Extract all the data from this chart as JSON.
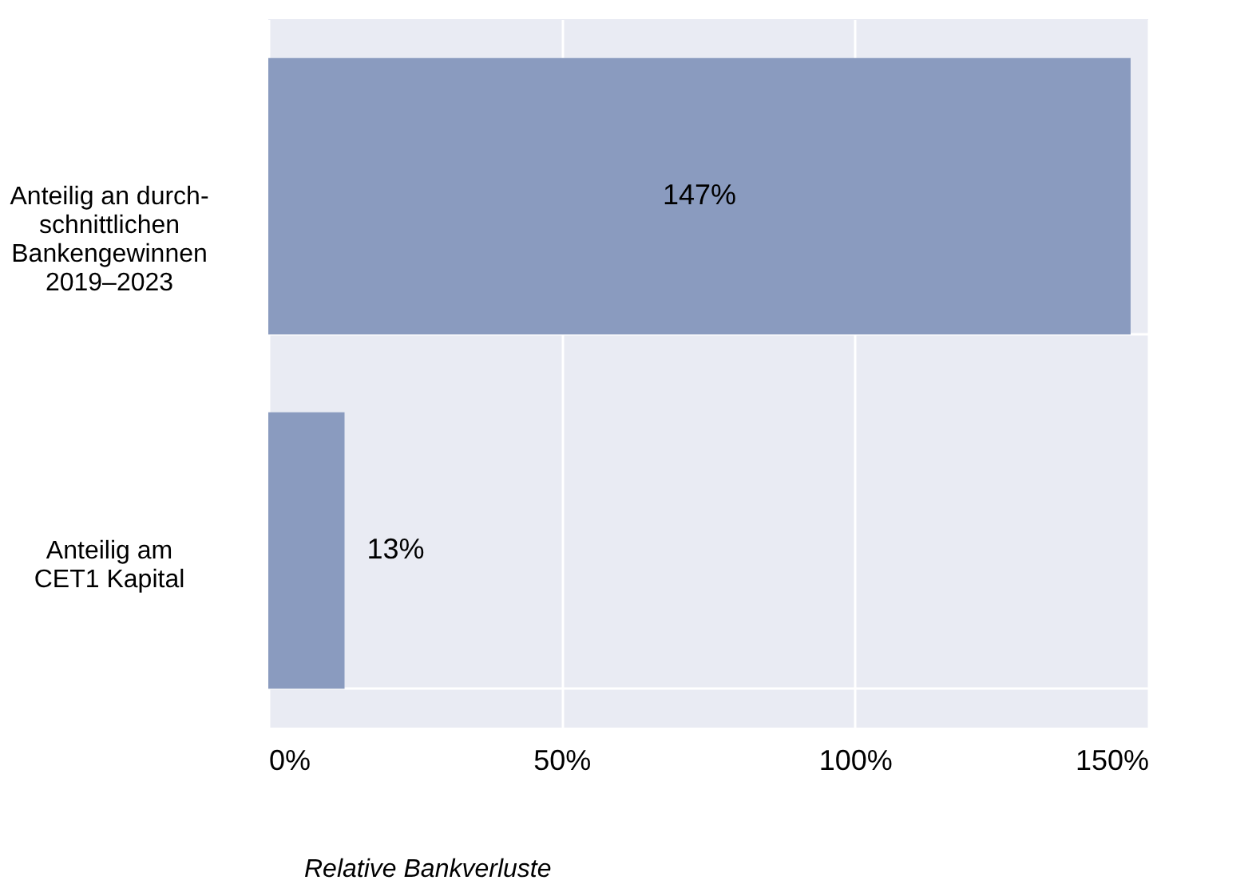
{
  "chart_data": {
    "type": "bar",
    "orientation": "horizontal",
    "xlabel": "Relative Bankverluste",
    "categories": [
      "Anteilig an durch-\nschnittlichen\nBankengewinnen\n2019–2023",
      "Anteilig am\nCET1 Kapital"
    ],
    "values": [
      147,
      13
    ],
    "color": "#8a9bbf",
    "value_labels": [
      "147%",
      "13%"
    ],
    "xlim": [
      0,
      150
    ],
    "xticks": [
      {
        "value": 0,
        "label": "0%"
      },
      {
        "value": 50,
        "label": "50%"
      },
      {
        "value": 100,
        "label": "100%"
      },
      {
        "value": 150,
        "label": "150%"
      }
    ],
    "grid": true
  }
}
